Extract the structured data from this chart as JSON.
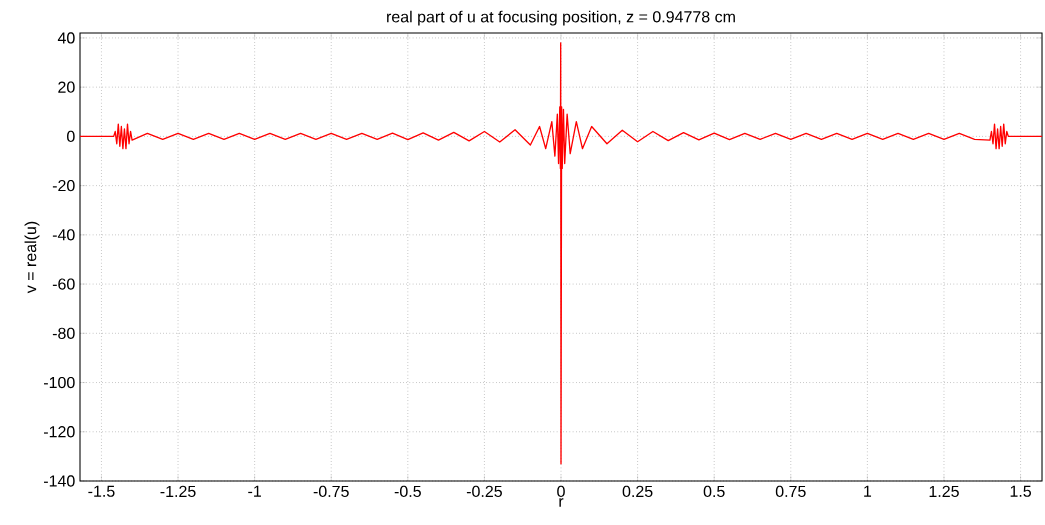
{
  "chart_data": {
    "type": "line",
    "title": "real part of u at focusing position, z = 0.94778 cm",
    "xlabel": "r",
    "ylabel": "v = real(u)",
    "xlim": [
      -1.57,
      1.57
    ],
    "ylim": [
      -140,
      42
    ],
    "xticks": [
      -1.5,
      -1.25,
      -1,
      -0.75,
      -0.5,
      -0.25,
      0,
      0.25,
      0.5,
      0.75,
      1,
      1.25,
      1.5
    ],
    "yticks": [
      -140,
      -120,
      -100,
      -80,
      -60,
      -40,
      -20,
      0,
      20,
      40
    ],
    "grid": true,
    "marker": "none",
    "line_style": "solid",
    "series": [
      {
        "color": "#ff0000",
        "x": [
          -1.57,
          -1.46,
          -1.455,
          -1.45,
          -1.445,
          -1.44,
          -1.435,
          -1.43,
          -1.425,
          -1.42,
          -1.415,
          -1.41,
          -1.405,
          -1.4,
          -1.35,
          -1.3,
          -1.25,
          -1.2,
          -1.15,
          -1.1,
          -1.05,
          -1.0,
          -0.95,
          -0.9,
          -0.85,
          -0.8,
          -0.75,
          -0.7,
          -0.65,
          -0.6,
          -0.55,
          -0.5,
          -0.45,
          -0.4,
          -0.35,
          -0.3,
          -0.25,
          -0.2,
          -0.15,
          -0.1,
          -0.07,
          -0.05,
          -0.03,
          -0.02,
          -0.012,
          -0.008,
          -0.004,
          -0.002,
          -0.001,
          0,
          0.002,
          0.004,
          0.008,
          0.012,
          0.02,
          0.03,
          0.05,
          0.07,
          0.1,
          0.15,
          0.2,
          0.25,
          0.3,
          0.35,
          0.4,
          0.45,
          0.5,
          0.55,
          0.6,
          0.65,
          0.7,
          0.75,
          0.8,
          0.85,
          0.9,
          0.95,
          1.0,
          1.05,
          1.1,
          1.15,
          1.2,
          1.25,
          1.3,
          1.35,
          1.4,
          1.405,
          1.41,
          1.415,
          1.42,
          1.425,
          1.43,
          1.435,
          1.44,
          1.445,
          1.45,
          1.455,
          1.46,
          1.57
        ],
        "values": [
          0,
          0,
          2,
          -3,
          5,
          -4,
          4,
          -5,
          3,
          -5,
          5,
          -3,
          2,
          -1.5,
          1.2,
          -1.2,
          1.2,
          -1.2,
          1.2,
          -1.2,
          1.2,
          -1.2,
          1.2,
          -1.2,
          1.2,
          -1.2,
          1.2,
          -1.2,
          1.2,
          -1.2,
          1.3,
          -1.3,
          1.4,
          -1.5,
          1.6,
          -1.8,
          2,
          -2.3,
          2.7,
          -3.5,
          4,
          -5,
          6,
          -8,
          9,
          -11,
          12,
          -13,
          38,
          -133,
          12,
          -13,
          11,
          -11,
          9,
          -7,
          6,
          -5,
          4,
          -3,
          2.5,
          -2.2,
          2,
          -1.7,
          1.5,
          -1.4,
          1.3,
          -1.3,
          1.2,
          -1.2,
          1.2,
          -1.2,
          1.2,
          -1.2,
          1.2,
          -1.2,
          1.2,
          -1.2,
          1.2,
          -1.2,
          1.2,
          -1.2,
          1.2,
          -1.2,
          -1.5,
          2,
          -3,
          5,
          -5,
          3,
          -5,
          4,
          -4,
          5,
          -3,
          2,
          0,
          0
        ]
      }
    ]
  }
}
